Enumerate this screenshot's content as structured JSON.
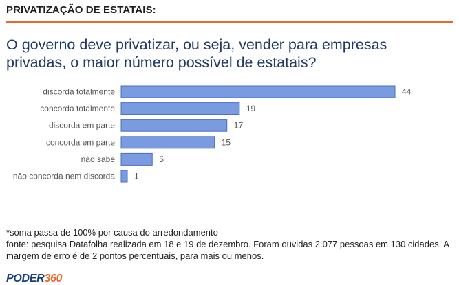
{
  "header": {
    "title": "PRIVATIZAÇÃO DE ESTATAIS:"
  },
  "question": "O governo deve privatizar, ou seja, vender para empresas privadas, o maior número possível de estatais?",
  "chart_data": {
    "type": "bar",
    "orientation": "horizontal",
    "categories": [
      "discorda totalmente",
      "concorda totalmente",
      "discorda em parte",
      "concorda em parte",
      "não sabe",
      "não concorda nem discorda"
    ],
    "values": [
      44,
      19,
      17,
      15,
      5,
      1
    ],
    "xlim": [
      0,
      44
    ],
    "grid": false,
    "bar_color": "#7b9be0",
    "bar_stroke": "#4a6fc4"
  },
  "notes": {
    "line1": "*soma passa de 100% por causa do arredondamento",
    "line2": "fonte: pesquisa Datafolha realizada em 18 e 19 de dezembro. Foram ouvidas 2.077 pessoas em 130 cidades. A margem de erro é de 2 pontos percentuais, para mais ou menos."
  },
  "logo": {
    "part1": "PODER",
    "part2": "360"
  }
}
